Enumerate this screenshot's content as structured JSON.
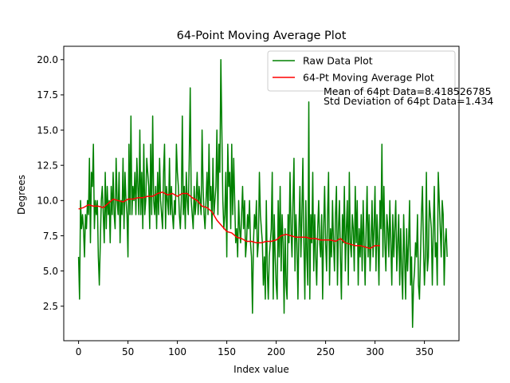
{
  "chart_data": {
    "type": "line",
    "title": "64-Point Moving Average Plot",
    "xlabel": "Index value",
    "ylabel": "Degrees",
    "xlim": [
      -15,
      385
    ],
    "ylim": [
      0.05,
      20.95
    ],
    "xticks": [
      0,
      50,
      100,
      150,
      200,
      250,
      300,
      350
    ],
    "xtick_labels": [
      "0",
      "50",
      "100",
      "150",
      "200",
      "250",
      "300",
      "350"
    ],
    "yticks": [
      2.5,
      5.0,
      7.5,
      10.0,
      12.5,
      15.0,
      17.5,
      20.0
    ],
    "ytick_labels": [
      "2.5",
      "5.0",
      "7.5",
      "10.0",
      "12.5",
      "15.0",
      "17.5",
      "20.0"
    ],
    "grid": false,
    "legend_position": "upper right",
    "annotations": [
      "Mean of 64pt Data=8.418526785",
      "Std Deviation of 64pt Data=1.434"
    ],
    "series": [
      {
        "name": "Raw Data Plot",
        "color": "#008000",
        "x_start": 0,
        "values": [
          6,
          3,
          10,
          8,
          9,
          8,
          6,
          9,
          8,
          10,
          9,
          13,
          7,
          12,
          11,
          14,
          8,
          10,
          9,
          10,
          6,
          4,
          7,
          10,
          11,
          9,
          7,
          12,
          8,
          11,
          9,
          10,
          7,
          11,
          9,
          12,
          9,
          8,
          13,
          10,
          9,
          12,
          7,
          10,
          9,
          13,
          8,
          12,
          10,
          9,
          6,
          14,
          9,
          16,
          9,
          11,
          10,
          12,
          9,
          13,
          11,
          9,
          15,
          9,
          12,
          8,
          14,
          9,
          10,
          13,
          12,
          11,
          8,
          14,
          9,
          16,
          10,
          9,
          11,
          8,
          12,
          9,
          13,
          10,
          9,
          8,
          12,
          14,
          8,
          11,
          10,
          9,
          13,
          9,
          11,
          9,
          8,
          10,
          9,
          14,
          12,
          11,
          9,
          8,
          10,
          16,
          9,
          11,
          8,
          12,
          10,
          9,
          13,
          18,
          10,
          9,
          8,
          11,
          9,
          10,
          12,
          9,
          11,
          10,
          9,
          15,
          11,
          9,
          8,
          10,
          12,
          9,
          14,
          10,
          11,
          8,
          13,
          9,
          10,
          11,
          15,
          9,
          14,
          12,
          20,
          15,
          10,
          8,
          9,
          12,
          6,
          14,
          11,
          12,
          8,
          14,
          9,
          13,
          10,
          7,
          8,
          6,
          10,
          8,
          7,
          9,
          11,
          8,
          10,
          6,
          7,
          9,
          8,
          10,
          7,
          6,
          2,
          7,
          9,
          8,
          10,
          6,
          7,
          12,
          9,
          8,
          7,
          4,
          6,
          3,
          10,
          5,
          3,
          6,
          7,
          8,
          12,
          3,
          9,
          6,
          4,
          3,
          10,
          6,
          11,
          5,
          9,
          7,
          2,
          8,
          4,
          3,
          9,
          7,
          12,
          8,
          6,
          10,
          13,
          5,
          9,
          7,
          3,
          8,
          11,
          6,
          9,
          13,
          7,
          3,
          10,
          6,
          4,
          17,
          3,
          9,
          7,
          12,
          5,
          9,
          6,
          4,
          8,
          10,
          7,
          6,
          9,
          3,
          8,
          11,
          7,
          5,
          9,
          12,
          4,
          8,
          6,
          10,
          7,
          5,
          9,
          11,
          4,
          8,
          10,
          6,
          3,
          9,
          7,
          11,
          5,
          8,
          10,
          4,
          12,
          7,
          6,
          9,
          8,
          5,
          11,
          7,
          10,
          4,
          8,
          6,
          9,
          5,
          10,
          7,
          4,
          8,
          11,
          6,
          9,
          5,
          7,
          10,
          6,
          8,
          11,
          5,
          9,
          7,
          4,
          10,
          8,
          14,
          6,
          11,
          7,
          5,
          9,
          8,
          6,
          10,
          7,
          4,
          9,
          6,
          8,
          10,
          5,
          7,
          9,
          4,
          8,
          5,
          3,
          9,
          6,
          3,
          8,
          5,
          7,
          10,
          4,
          6,
          1,
          4,
          5,
          7,
          6,
          9,
          4,
          3,
          6,
          9,
          11,
          7,
          4,
          6,
          12,
          5,
          6,
          10,
          9,
          8,
          4,
          8,
          11,
          6,
          7,
          4,
          12,
          10,
          8,
          6,
          10,
          9,
          4,
          7,
          8,
          6
        ]
      },
      {
        "name": "64-Pt Moving Average Plot",
        "color": "#ff0000",
        "x": [
          0,
          5,
          10,
          15,
          20,
          25,
          30,
          35,
          40,
          45,
          50,
          55,
          60,
          65,
          70,
          75,
          80,
          85,
          90,
          95,
          100,
          105,
          110,
          115,
          120,
          125,
          130,
          135,
          140,
          145,
          150,
          155,
          160,
          165,
          170,
          175,
          180,
          185,
          190,
          195,
          200,
          205,
          210,
          215,
          220,
          225,
          230,
          235,
          240,
          245,
          250,
          255,
          260,
          265,
          270,
          275,
          280,
          285,
          290,
          295,
          300,
          305
        ],
        "values": [
          9.4,
          9.5,
          9.7,
          9.6,
          9.6,
          9.5,
          9.8,
          10.1,
          10.0,
          9.9,
          10.1,
          10.1,
          10.2,
          10.2,
          10.3,
          10.3,
          10.5,
          10.6,
          10.4,
          10.5,
          10.3,
          10.5,
          10.5,
          10.2,
          10.0,
          9.6,
          9.5,
          9.2,
          8.6,
          8.2,
          7.8,
          7.7,
          7.4,
          7.3,
          7.1,
          7.1,
          7.0,
          7.0,
          7.1,
          7.1,
          7.2,
          7.5,
          7.6,
          7.5,
          7.4,
          7.4,
          7.4,
          7.3,
          7.3,
          7.2,
          7.2,
          7.2,
          7.1,
          7.3,
          7.0,
          6.9,
          6.8,
          6.8,
          6.7,
          6.6,
          6.8,
          6.8
        ]
      }
    ]
  }
}
